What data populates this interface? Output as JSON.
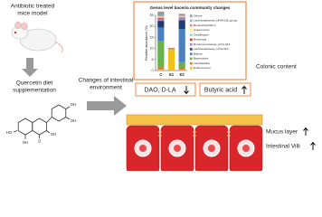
{
  "texts": {
    "model": [
      "Antibiotic treated",
      "mice model"
    ],
    "diet": [
      "Quercetin diet",
      "supplementation"
    ],
    "changes": [
      "Changes of intestinal",
      "environment"
    ],
    "colonic": "Colonic content",
    "dao": "DAO, D-LA",
    "butyric": "Butyric acid",
    "mucus": "Mucus layer",
    "villi": "Intestinal Villi",
    "quercetin_labels": [
      "HO",
      "OH",
      "O",
      "OH",
      "OH",
      "OH"
    ]
  },
  "chart_data": {
    "type": "bar",
    "stacked": true,
    "title": "Genus level baceria community changes",
    "ylabel": "Relative abundance (%)",
    "categories": [
      "C",
      "E1",
      "E2"
    ],
    "ylim": [
      0,
      25
    ],
    "yticks": [
      0,
      5,
      10,
      15,
      20,
      25
    ],
    "series": [
      {
        "name": "Enterococcus",
        "color": "#f2c21b",
        "values": [
          0.5,
          9.5,
          0.3
        ]
      },
      {
        "name": "Lactobacillus",
        "color": "#e8732a",
        "values": [
          1.0,
          0.3,
          0.5
        ]
      },
      {
        "name": "Bacteroides",
        "color": "#6ab04c",
        "values": [
          12,
          0.1,
          3
        ]
      },
      {
        "name": "Blautia",
        "color": "#4a7fc1",
        "values": [
          6,
          0.1,
          15
        ]
      },
      {
        "name": "Lachnospiraceae_UCG-010",
        "color": "#1f3b73",
        "values": [
          3,
          0.1,
          4
        ]
      },
      {
        "name": "Ruminococcaceae_UCG-014",
        "color": "#b07cc6",
        "values": [
          1,
          0,
          1
        ]
      },
      {
        "name": "Roseburia",
        "color": "#c0392b",
        "values": [
          0.3,
          0,
          0.2
        ]
      },
      {
        "name": "Oscillibacter",
        "color": "#8dd3c7",
        "values": [
          0.5,
          0,
          0.3
        ]
      },
      {
        "name": "Anaerovorax",
        "color": "#ffed6f",
        "values": [
          0.2,
          0,
          0.2
        ]
      },
      {
        "name": "Ruminiclostridium",
        "color": "#fb8072",
        "values": [
          0.3,
          0,
          0.2
        ]
      },
      {
        "name": "Lachnospiraceae_NK4A136_group",
        "color": "#80b1d3",
        "values": [
          0.4,
          0,
          0.3
        ]
      },
      {
        "name": "Others",
        "color": "#999999",
        "values": [
          1.5,
          0.2,
          0.7
        ]
      }
    ]
  }
}
